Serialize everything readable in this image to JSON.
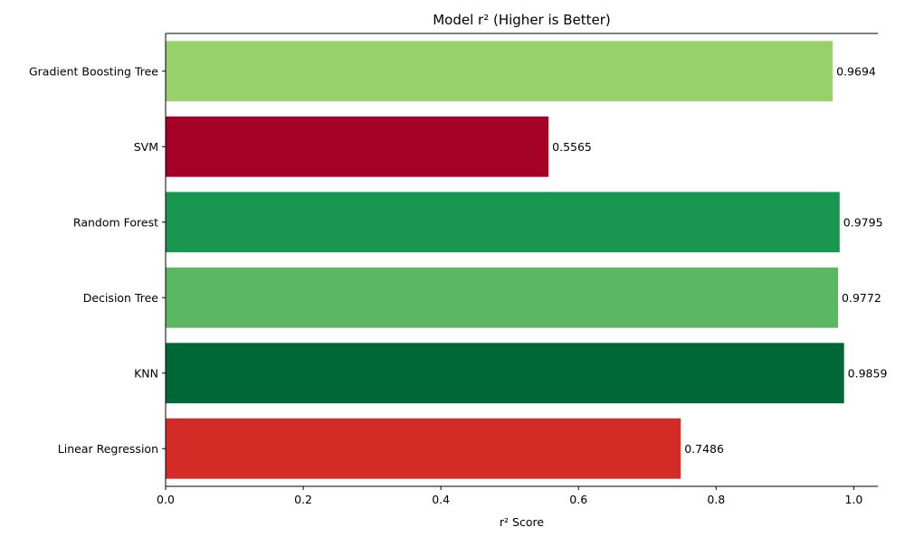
{
  "chart_data": {
    "type": "bar",
    "orientation": "horizontal",
    "title": "Model r² (Higher is Better)",
    "xlabel": "r² Score",
    "ylabel": "",
    "xlim": [
      0,
      1.035
    ],
    "x_ticks": [
      "0.0",
      "0.2",
      "0.4",
      "0.6",
      "0.8",
      "1.0"
    ],
    "x_tick_values": [
      0.0,
      0.2,
      0.4,
      0.6,
      0.8,
      1.0
    ],
    "grid": false,
    "categories": [
      "Gradient Boosting Tree",
      "SVM",
      "Random Forest",
      "Decision Tree",
      "KNN",
      "Linear Regression"
    ],
    "values": [
      0.9694,
      0.5565,
      0.9795,
      0.9772,
      0.9859,
      0.7486
    ],
    "value_labels": [
      "0.9694",
      "0.5565",
      "0.9795",
      "0.9772",
      "0.9859",
      "0.7486"
    ],
    "colors": [
      "#96d16a",
      "#a50026",
      "#199750",
      "#5bb862",
      "#006837",
      "#d52b27"
    ]
  }
}
